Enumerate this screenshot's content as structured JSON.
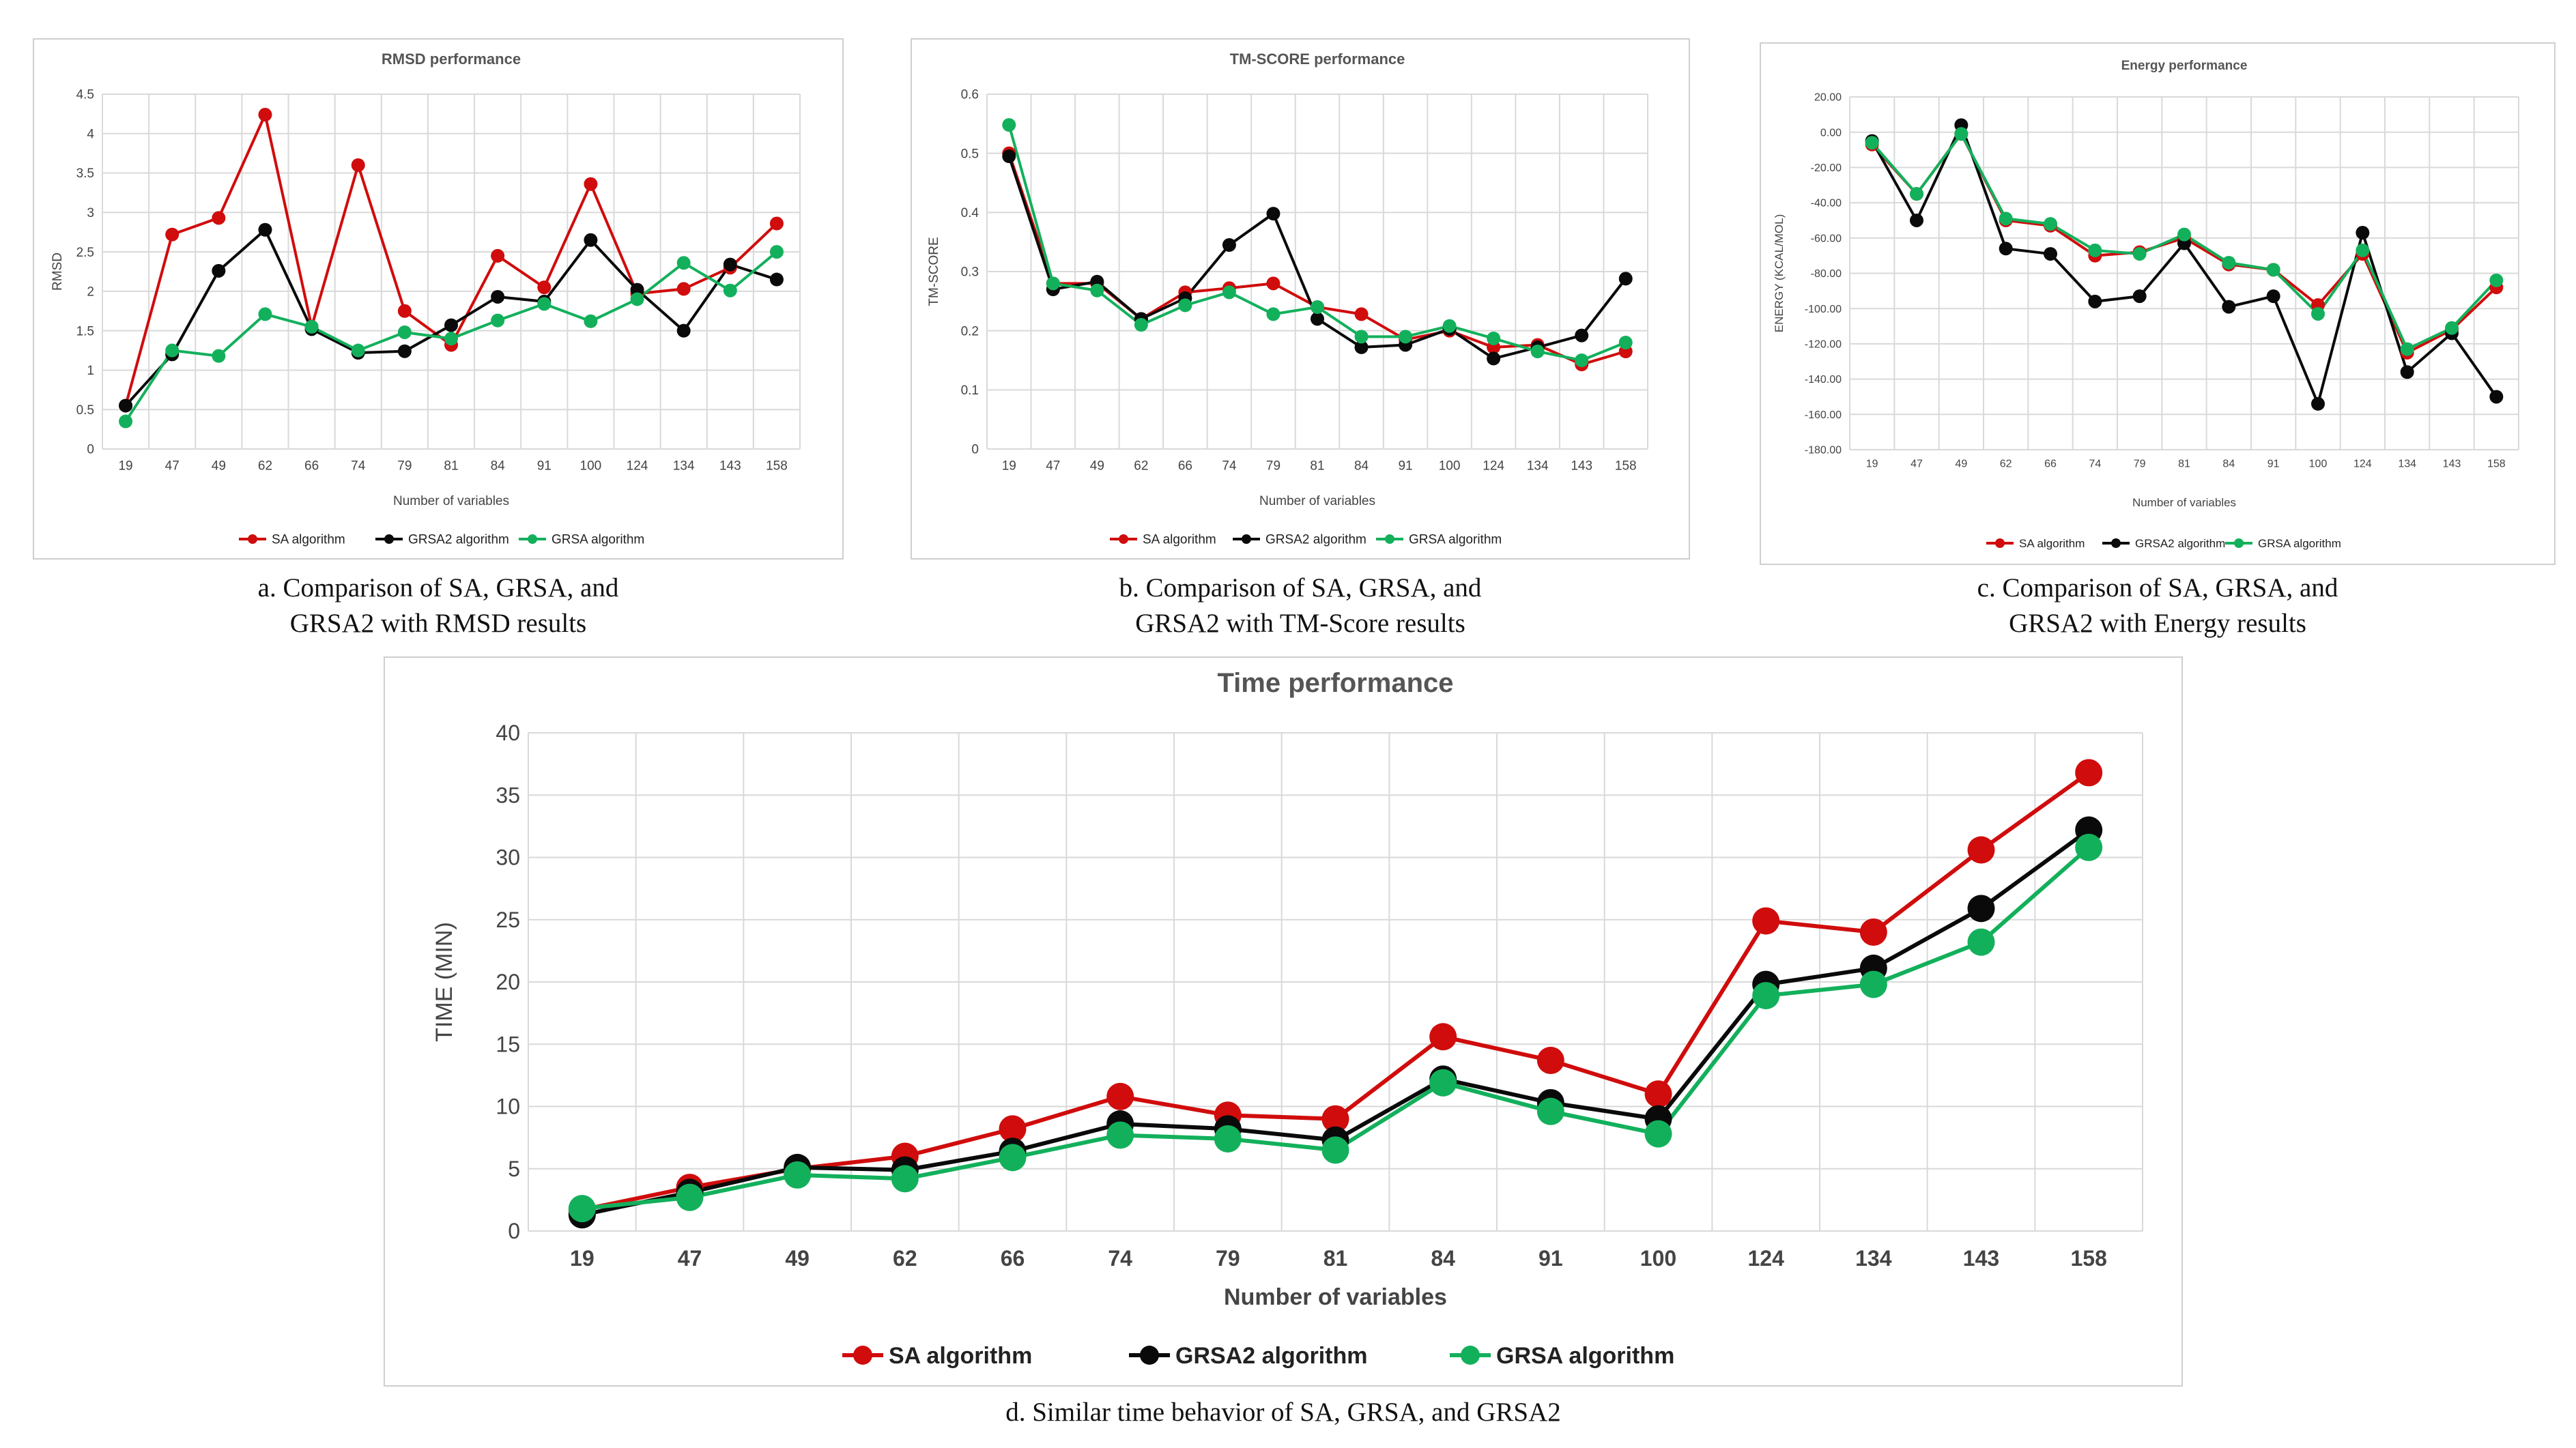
{
  "colors": {
    "SA": "#d00c0c",
    "GRSA2": "#0a0a0a",
    "GRSA": "#13b05c",
    "grid": "#d9d9d9"
  },
  "legend": [
    "SA algorithm",
    "GRSA2 algorithm",
    "GRSA algorithm"
  ],
  "captions": {
    "a": [
      "a. Comparison of SA, GRSA, and",
      "GRSA2 with RMSD results"
    ],
    "b": [
      "b. Comparison of SA, GRSA, and",
      "GRSA2 with TM-Score results"
    ],
    "c": [
      "c. Comparison of SA, GRSA, and",
      "GRSA2 with Energy results"
    ],
    "d": [
      "d. Similar time behavior of SA, GRSA, and GRSA2"
    ]
  },
  "chart_data": [
    {
      "id": "a",
      "type": "line",
      "title": "RMSD performance",
      "xlabel": "Number of variables",
      "ylabel": "RMSD",
      "categories": [
        "19",
        "47",
        "49",
        "62",
        "66",
        "74",
        "79",
        "81",
        "84",
        "91",
        "100",
        "124",
        "134",
        "143",
        "158"
      ],
      "ylim": [
        0,
        4.5
      ],
      "yticks": [
        "0",
        "0.5",
        "1",
        "1.5",
        "2",
        "2.5",
        "3",
        "3.5",
        "4",
        "4.5"
      ],
      "series": [
        {
          "name": "SA algorithm",
          "values": [
            0.55,
            2.72,
            2.93,
            4.24,
            1.55,
            3.6,
            1.75,
            1.32,
            2.45,
            2.05,
            3.36,
            1.97,
            2.03,
            2.3,
            2.86
          ]
        },
        {
          "name": "GRSA2 algorithm",
          "values": [
            0.55,
            1.2,
            2.26,
            2.78,
            1.52,
            1.22,
            1.24,
            1.57,
            1.93,
            1.87,
            2.65,
            2.02,
            1.5,
            2.34,
            2.15
          ]
        },
        {
          "name": "GRSA algorithm",
          "values": [
            0.35,
            1.25,
            1.18,
            1.71,
            1.55,
            1.25,
            1.48,
            1.4,
            1.63,
            1.84,
            1.62,
            1.9,
            2.36,
            2.01,
            2.5
          ]
        }
      ]
    },
    {
      "id": "b",
      "type": "line",
      "title": "TM-SCORE performance",
      "xlabel": "Number of variables",
      "ylabel": "TM-SCORE",
      "categories": [
        "19",
        "47",
        "49",
        "62",
        "66",
        "74",
        "79",
        "81",
        "84",
        "91",
        "100",
        "124",
        "134",
        "143",
        "158"
      ],
      "ylim": [
        0,
        0.6
      ],
      "yticks": [
        "0",
        "0.1",
        "0.2",
        "0.3",
        "0.4",
        "0.5",
        "0.6"
      ],
      "series": [
        {
          "name": "SA algorithm",
          "values": [
            0.5,
            0.28,
            0.28,
            0.22,
            0.265,
            0.272,
            0.28,
            0.24,
            0.228,
            0.185,
            0.2,
            0.172,
            0.176,
            0.143,
            0.165
          ]
        },
        {
          "name": "GRSA2 algorithm",
          "values": [
            0.495,
            0.27,
            0.283,
            0.22,
            0.255,
            0.345,
            0.398,
            0.22,
            0.172,
            0.176,
            0.203,
            0.153,
            0.172,
            0.192,
            0.288
          ]
        },
        {
          "name": "GRSA algorithm",
          "values": [
            0.548,
            0.28,
            0.268,
            0.21,
            0.243,
            0.265,
            0.228,
            0.24,
            0.19,
            0.19,
            0.208,
            0.187,
            0.165,
            0.15,
            0.18
          ]
        }
      ]
    },
    {
      "id": "c",
      "type": "line",
      "title": "Energy performance",
      "xlabel": "Number of variables",
      "ylabel": "ENERGY (KCAL/MOL)",
      "categories": [
        "19",
        "47",
        "49",
        "62",
        "66",
        "74",
        "79",
        "81",
        "84",
        "91",
        "100",
        "124",
        "134",
        "143",
        "158"
      ],
      "ylim": [
        -180,
        20
      ],
      "yticks": [
        "20.00",
        "0.00",
        "-20.00",
        "-40.00",
        "-60.00",
        "-80.00",
        "-100.00",
        "-120.00",
        "-140.00",
        "-160.00",
        "-180.00"
      ],
      "series": [
        {
          "name": "SA algorithm",
          "values": [
            -7,
            -35,
            -1,
            -50,
            -53,
            -70,
            -68,
            -60,
            -75,
            -78,
            -98,
            -69,
            -125,
            -112,
            -88
          ]
        },
        {
          "name": "GRSA2 algorithm",
          "values": [
            -5,
            -50,
            4,
            -66,
            -69,
            -96,
            -93,
            -63,
            -99,
            -93,
            -154,
            -57,
            -136,
            -114,
            -150
          ]
        },
        {
          "name": "GRSA algorithm",
          "values": [
            -6,
            -35,
            -1,
            -49,
            -52,
            -67,
            -69,
            -58,
            -74,
            -78,
            -103,
            -67,
            -123,
            -111,
            -84
          ]
        }
      ]
    },
    {
      "id": "d",
      "type": "line",
      "title": "Time performance",
      "xlabel": "Number of variables",
      "ylabel": "TIME (MIN)",
      "categories": [
        "19",
        "47",
        "49",
        "62",
        "66",
        "74",
        "79",
        "81",
        "84",
        "91",
        "100",
        "124",
        "134",
        "143",
        "158"
      ],
      "ylim": [
        0,
        40
      ],
      "yticks": [
        "0",
        "5",
        "10",
        "15",
        "20",
        "25",
        "30",
        "35",
        "40"
      ],
      "series": [
        {
          "name": "SA algorithm",
          "values": [
            1.7,
            3.5,
            5.0,
            6.0,
            8.2,
            10.8,
            9.3,
            9.0,
            15.6,
            13.7,
            11.0,
            24.9,
            24.0,
            30.6,
            36.8
          ]
        },
        {
          "name": "GRSA2 algorithm",
          "values": [
            1.3,
            3.1,
            5.1,
            4.9,
            6.4,
            8.6,
            8.2,
            7.3,
            12.2,
            10.3,
            9.0,
            19.8,
            21.1,
            25.9,
            32.2
          ]
        },
        {
          "name": "GRSA algorithm",
          "values": [
            1.8,
            2.7,
            4.5,
            4.2,
            5.9,
            7.7,
            7.4,
            6.5,
            11.9,
            9.6,
            7.8,
            18.9,
            19.8,
            23.2,
            30.8
          ]
        }
      ]
    }
  ]
}
